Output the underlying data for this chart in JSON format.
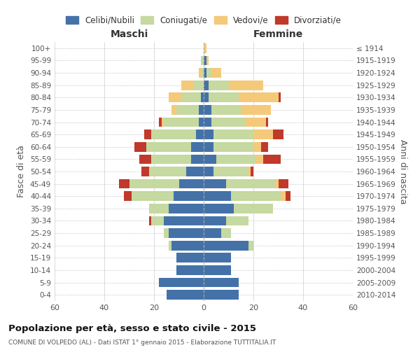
{
  "age_groups": [
    "0-4",
    "5-9",
    "10-14",
    "15-19",
    "20-24",
    "25-29",
    "30-34",
    "35-39",
    "40-44",
    "45-49",
    "50-54",
    "55-59",
    "60-64",
    "65-69",
    "70-74",
    "75-79",
    "80-84",
    "85-89",
    "90-94",
    "95-99",
    "100+"
  ],
  "birth_years": [
    "2010-2014",
    "2005-2009",
    "2000-2004",
    "1995-1999",
    "1990-1994",
    "1985-1989",
    "1980-1984",
    "1975-1979",
    "1970-1974",
    "1965-1969",
    "1960-1964",
    "1955-1959",
    "1950-1954",
    "1945-1949",
    "1940-1944",
    "1935-1939",
    "1930-1934",
    "1925-1929",
    "1920-1924",
    "1915-1919",
    "≤ 1914"
  ],
  "male": {
    "celibe": [
      15,
      18,
      11,
      11,
      13,
      14,
      16,
      14,
      12,
      10,
      7,
      5,
      5,
      3,
      2,
      2,
      1,
      0,
      0,
      0,
      0
    ],
    "coniugato": [
      0,
      0,
      0,
      0,
      1,
      2,
      5,
      8,
      17,
      20,
      15,
      16,
      18,
      18,
      14,
      9,
      8,
      4,
      1,
      1,
      0
    ],
    "vedovo": [
      0,
      0,
      0,
      0,
      0,
      0,
      0,
      0,
      0,
      0,
      0,
      0,
      0,
      0,
      1,
      2,
      5,
      5,
      1,
      0,
      0
    ],
    "divorziato": [
      0,
      0,
      0,
      0,
      0,
      0,
      1,
      0,
      3,
      4,
      3,
      5,
      5,
      3,
      1,
      0,
      0,
      0,
      0,
      0,
      0
    ]
  },
  "female": {
    "nubile": [
      14,
      14,
      11,
      11,
      18,
      7,
      9,
      12,
      11,
      9,
      4,
      5,
      4,
      4,
      3,
      3,
      2,
      2,
      1,
      1,
      0
    ],
    "coniugata": [
      0,
      0,
      0,
      0,
      2,
      4,
      9,
      16,
      20,
      20,
      14,
      16,
      16,
      16,
      14,
      12,
      12,
      8,
      2,
      0,
      0
    ],
    "vedova": [
      0,
      0,
      0,
      0,
      0,
      0,
      0,
      0,
      2,
      1,
      1,
      3,
      3,
      8,
      8,
      12,
      16,
      14,
      4,
      1,
      1
    ],
    "divorziata": [
      0,
      0,
      0,
      0,
      0,
      0,
      0,
      0,
      2,
      4,
      1,
      7,
      3,
      4,
      1,
      0,
      1,
      0,
      0,
      0,
      0
    ]
  },
  "colors": {
    "celibe": "#4472a8",
    "coniugato": "#c5d9a0",
    "vedovo": "#f5c97a",
    "divorziato": "#c0392b"
  },
  "xlim": 60,
  "title": "Popolazione per età, sesso e stato civile - 2015",
  "subtitle": "COMUNE DI VOLPEDO (AL) - Dati ISTAT 1° gennaio 2015 - Elaborazione TUTTITALIA.IT",
  "ylabel": "Fasce di età",
  "ylabel_right": "Anni di nascita",
  "xlabel_left": "Maschi",
  "xlabel_right": "Femmine",
  "legend_labels": [
    "Celibi/Nubili",
    "Coniugati/e",
    "Vedovi/e",
    "Divorziati/e"
  ],
  "background_color": "#ffffff",
  "grid_color": "#cccccc"
}
